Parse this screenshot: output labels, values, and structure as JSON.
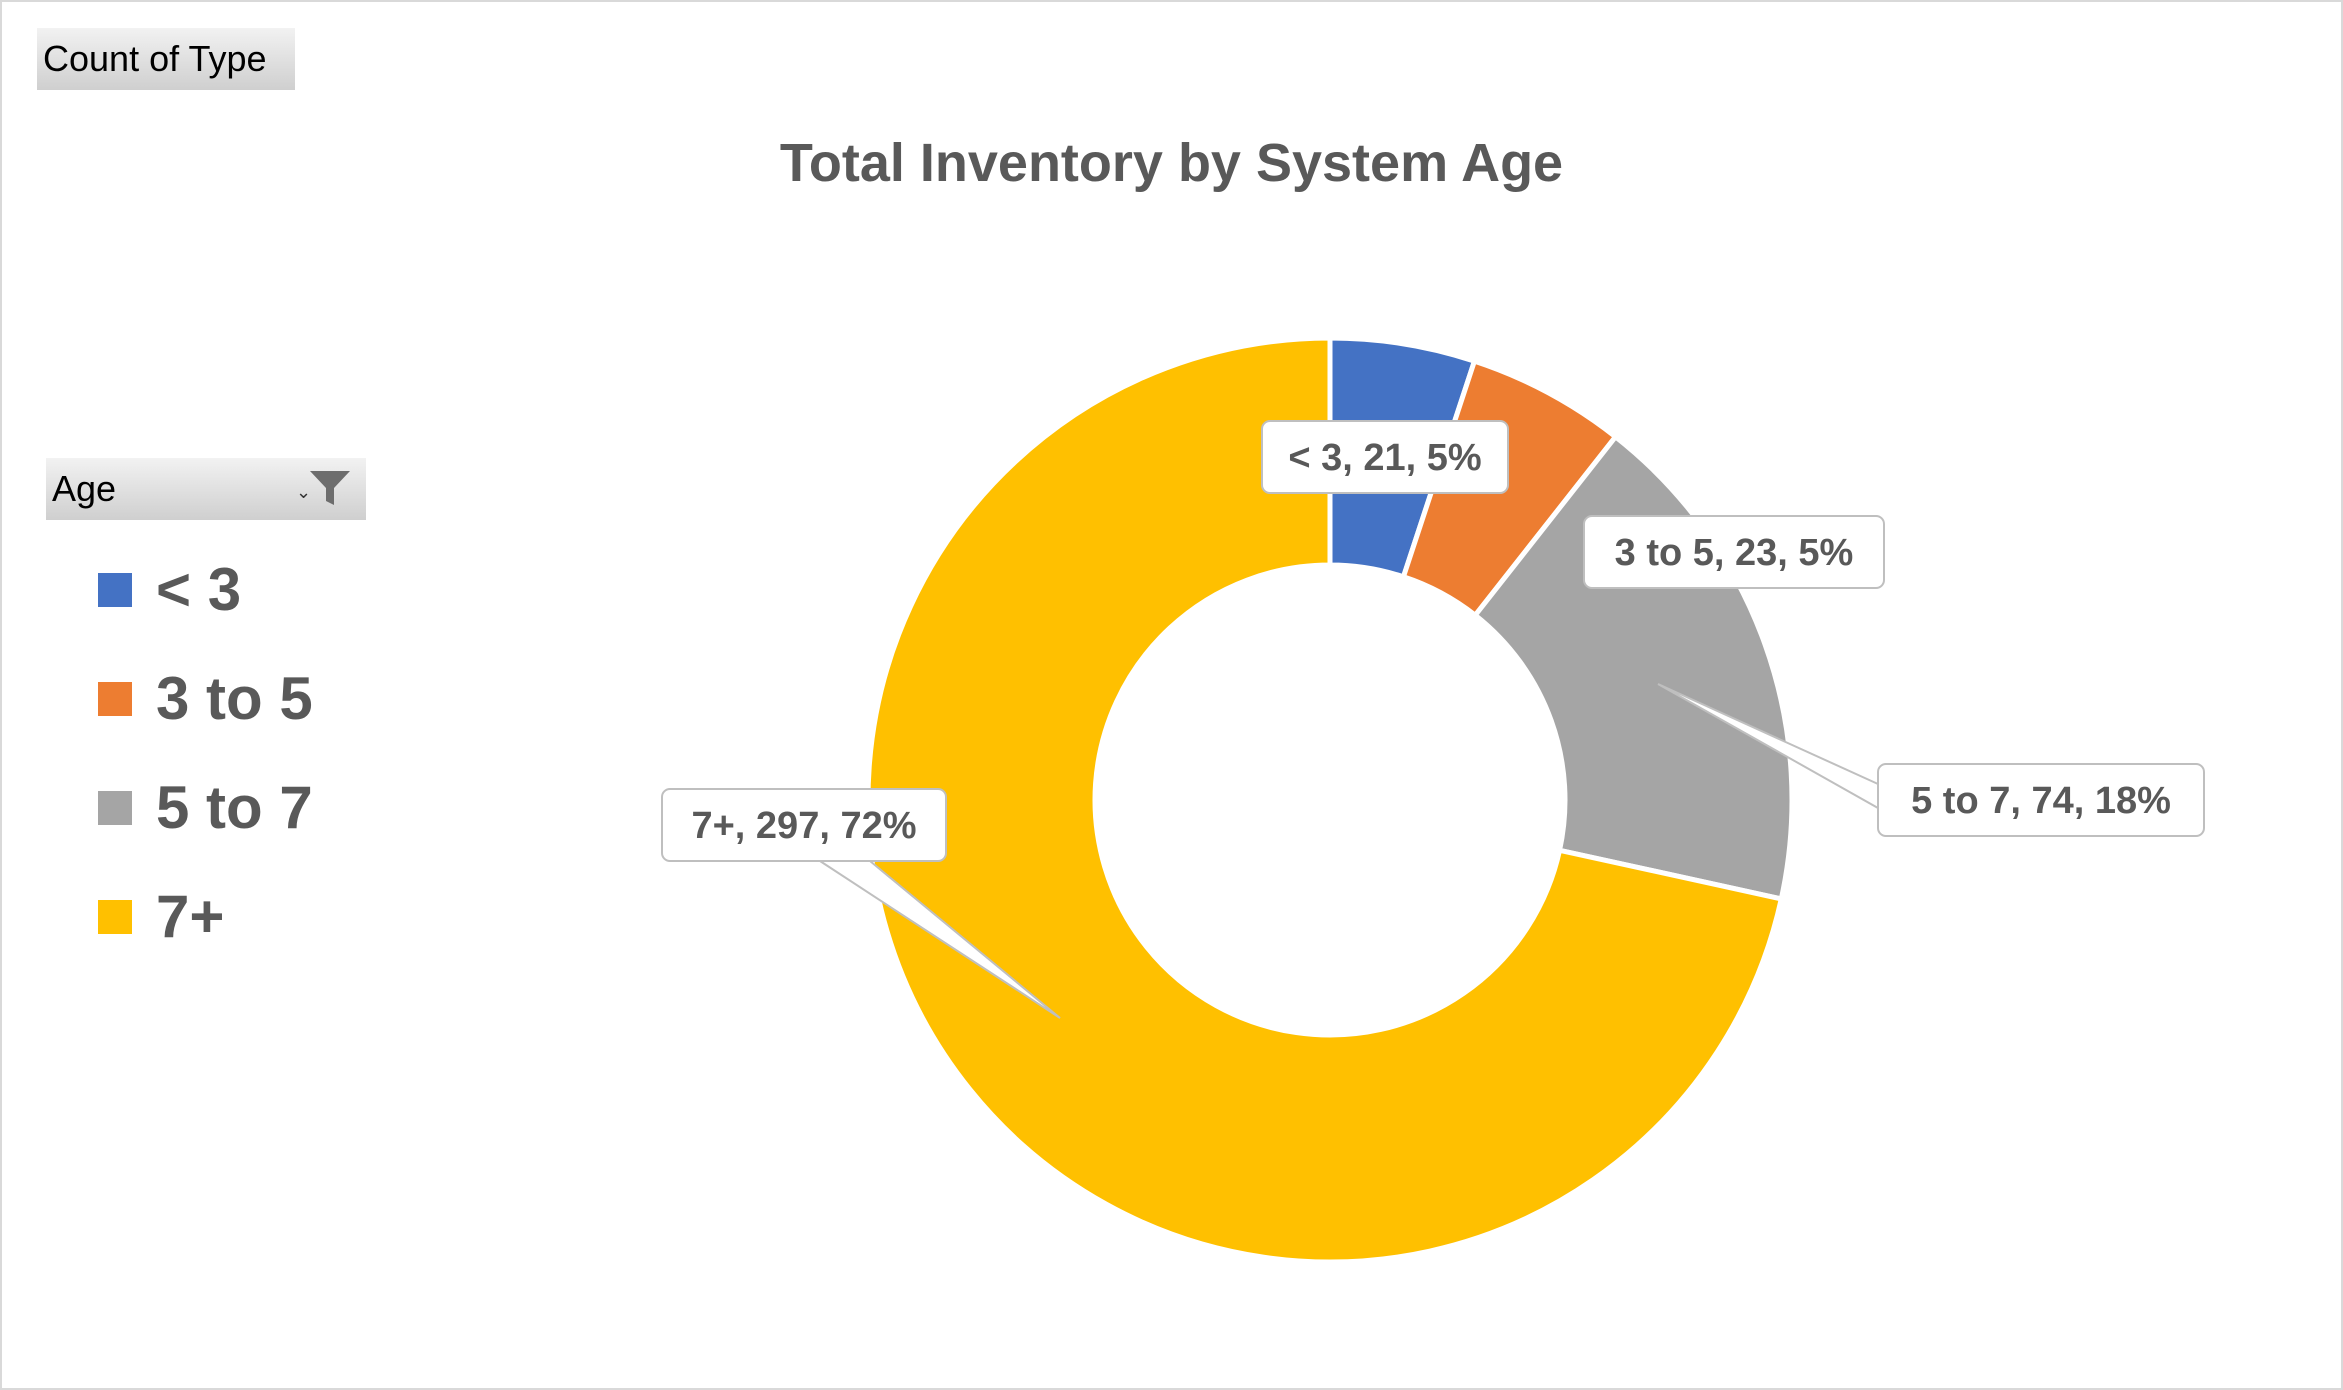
{
  "field_buttons": {
    "values_field": "Count of Type",
    "axis_field": "Age"
  },
  "chart_data": {
    "type": "pie",
    "variant": "doughnut",
    "title": "Total Inventory by System Age",
    "categories": [
      "< 3",
      "3 to 5",
      "5 to 7",
      "7+"
    ],
    "values": [
      21,
      23,
      74,
      297
    ],
    "percent_labels": [
      "5%",
      "5%",
      "18%",
      "72%"
    ],
    "colors": [
      "#4472C4",
      "#ED7D31",
      "#A5A5A5",
      "#FFC000"
    ],
    "data_labels": [
      "< 3, 21, 5%",
      "3 to 5, 23, 5%",
      "5 to 7, 74, 18%",
      "7+, 297, 72%"
    ],
    "legend_position": "left"
  }
}
